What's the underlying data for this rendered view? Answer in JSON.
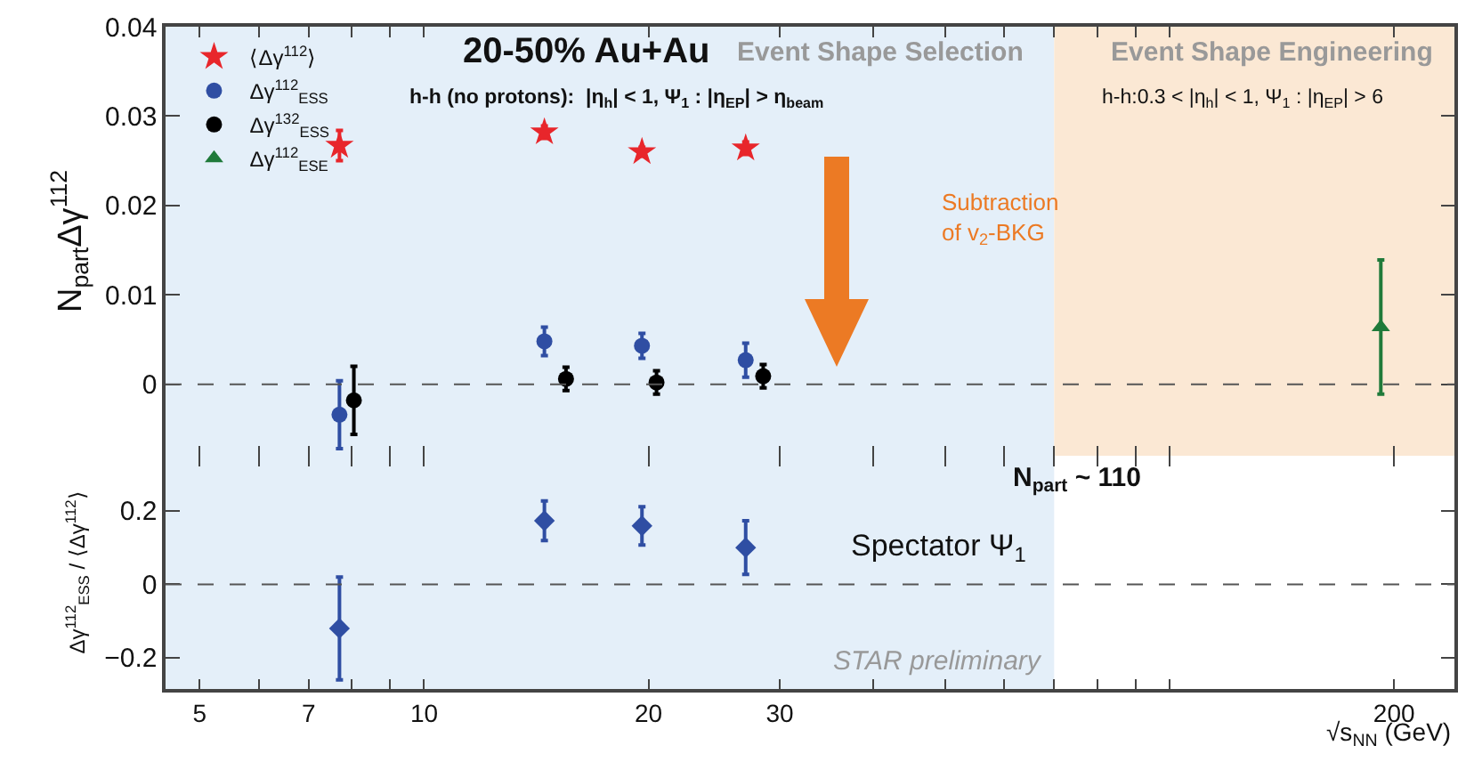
{
  "chart_data": [
    {
      "type": "scatter",
      "ylabel": "N$_{part}$Δγ$^{112}$",
      "annotations": [
        "20-50% Au+Au",
        "Event Shape Selection",
        "Event Shape Engineering",
        "h-h (no protons):  |η$_{h}$| < 1, Ψ$_{1}$ : |η$_{EP}$| > η$_{beam}$",
        "h-h:0.3 < |η$_{h}$| < 1, Ψ$_{1}$ : |η$_{EP}$| > 6",
        "Subtraction\nof v$_{2}$-BKG"
      ],
      "series": [
        {
          "name": "⟨Δγ$^{112}$⟩",
          "color": "#e8262b",
          "marker": "star",
          "x": [
            7.7,
            14.5,
            19.6,
            27
          ],
          "values": [
            0.0267,
            0.0282,
            0.026,
            0.0264
          ],
          "errors": [
            0.0017,
            0.0007,
            0.0005,
            0.0007
          ]
        },
        {
          "name": "Δγ$^{112}$$_{ESS}$",
          "color": "#2f4ea3",
          "marker": "circle",
          "x": [
            7.7,
            14.5,
            19.6,
            27
          ],
          "values": [
            -0.0034,
            0.0048,
            0.0043,
            0.0027
          ],
          "errors": [
            0.0038,
            0.0016,
            0.0014,
            0.0019
          ]
        },
        {
          "name": "Δγ$^{132}$$_{ESS}$",
          "color": "#000000",
          "marker": "circle",
          "x": [
            8.05,
            15.5,
            20.5,
            28.5
          ],
          "values": [
            -0.0018,
            0.0006,
            0.0002,
            0.0009
          ],
          "errors": [
            0.0038,
            0.0013,
            0.0013,
            0.0013
          ]
        },
        {
          "name": "Δγ$^{112}$$_{ESE}$",
          "color": "#1f7a3a",
          "marker": "triangle",
          "x": [
            192
          ],
          "values": [
            0.0064
          ],
          "errors": [
            0.0075
          ]
        }
      ],
      "xlim": [
        4.5,
        241
      ],
      "xticks": [
        5,
        {
          "value": 6,
          "label": null
        },
        7,
        {
          "value": 8,
          "label": null
        },
        {
          "value": 9,
          "label": null
        },
        10,
        20,
        30,
        {
          "value": 40,
          "label": null
        },
        {
          "value": 50,
          "label": null
        },
        {
          "value": 60,
          "label": null
        },
        {
          "value": 70,
          "label": null
        },
        {
          "value": 80,
          "label": null
        },
        {
          "value": 90,
          "label": null
        },
        {
          "value": 100,
          "label": null
        },
        200
      ],
      "ylim": [
        -0.008,
        0.04
      ],
      "yticks": [
        0,
        0.01,
        0.02,
        0.03,
        0.04
      ],
      "log": "x",
      "grid": false,
      "legend": "top left",
      "tick_labels": "y",
      "ref_lines": [
        {
          "axis": "y",
          "value": 0,
          "color": "#555555",
          "line_style": "dashed"
        }
      ],
      "bands": [
        {
          "axis": "x",
          "from": 4.5,
          "to": 70,
          "color": "#e4eff9"
        },
        {
          "axis": "x",
          "from": 70,
          "to": 241,
          "color": "#fbe8d4"
        }
      ]
    },
    {
      "type": "scatter",
      "xlabel": "√s$_{NN}$ (GeV)",
      "ylabel": "Δγ$^{112}$$_{ESS}$ / ⟨Δγ$^{112}$⟩",
      "annotations": [
        "N$_{part}$ ~ 110",
        "Spectator Ψ$_{1}$",
        "STAR preliminary"
      ],
      "series": [
        {
          "color": "#2f4ea3",
          "marker": "diamond",
          "x": [
            7.7,
            14.5,
            19.6,
            27
          ],
          "values": [
            -0.12,
            0.173,
            0.159,
            0.1
          ],
          "errors": [
            0.14,
            0.054,
            0.052,
            0.073
          ]
        }
      ],
      "xlim": [
        4.5,
        241
      ],
      "xticks": [
        5,
        {
          "value": 6,
          "label": null
        },
        7,
        {
          "value": 8,
          "label": null
        },
        {
          "value": 9,
          "label": null
        },
        10,
        20,
        30,
        {
          "value": 40,
          "label": null
        },
        {
          "value": 50,
          "label": null
        },
        {
          "value": 60,
          "label": null
        },
        {
          "value": 70,
          "label": null
        },
        {
          "value": 80,
          "label": null
        },
        {
          "value": 90,
          "label": null
        },
        {
          "value": 100,
          "label": null
        },
        200
      ],
      "ylim": [
        -0.285,
        0.35
      ],
      "yticks": [
        {
          "value": -0.2,
          "label": "−0.2"
        },
        0,
        0.2
      ],
      "log": "x",
      "grid": false,
      "legend": false,
      "ref_lines": [
        {
          "axis": "y",
          "value": 0,
          "color": "#555555",
          "line_style": "dashed"
        }
      ],
      "bands": [
        {
          "axis": "x",
          "from": 4.5,
          "to": 70,
          "color": "#e4eff9"
        }
      ]
    }
  ]
}
